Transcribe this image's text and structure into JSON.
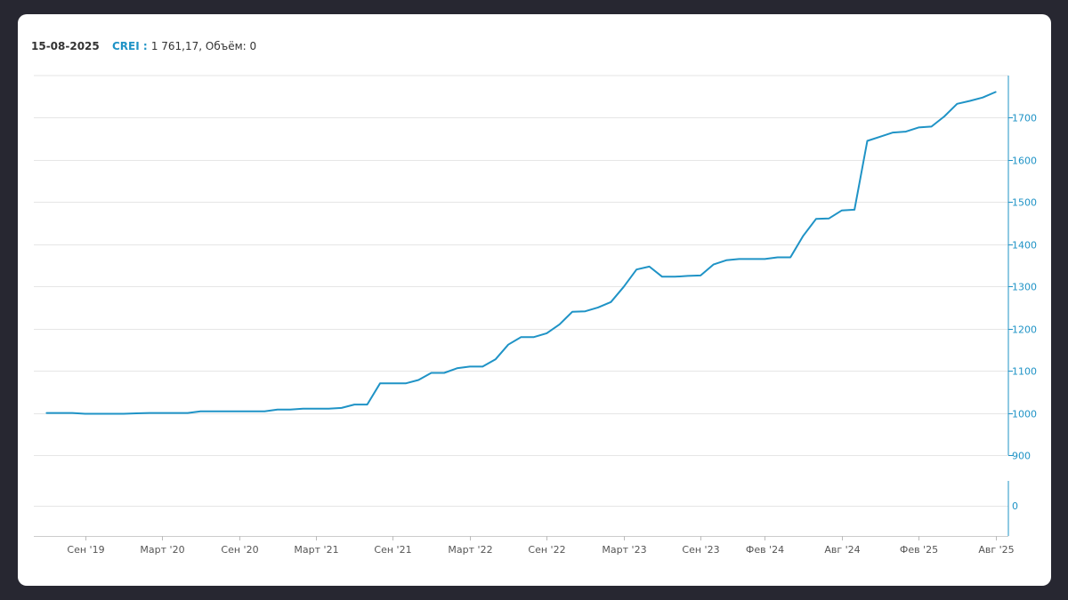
{
  "header": {
    "date": "15-08-2025",
    "ticker_label": "CREI :",
    "value_text": "1 761,17, Объём: 0"
  },
  "colors": {
    "series": "#1f93c6",
    "grid": "#e6e6e6",
    "axis_text": "#1f93c6",
    "xtick_text": "#555555"
  },
  "chart_data": {
    "type": "line",
    "title": "",
    "xlabel": "",
    "ylabel": "",
    "ylim": [
      900,
      1800
    ],
    "yticks": [
      900,
      1000,
      1100,
      1200,
      1300,
      1400,
      1500,
      1600,
      1700
    ],
    "xlim": [
      "2019-05",
      "2025-09"
    ],
    "x_ticks": [
      {
        "date": "2019-09",
        "label": "Сен '19"
      },
      {
        "date": "2020-03",
        "label": "Март '20"
      },
      {
        "date": "2020-09",
        "label": "Сен '20"
      },
      {
        "date": "2021-03",
        "label": "Март '21"
      },
      {
        "date": "2021-09",
        "label": "Сен '21"
      },
      {
        "date": "2022-03",
        "label": "Март '22"
      },
      {
        "date": "2022-09",
        "label": "Сен '22"
      },
      {
        "date": "2023-03",
        "label": "Март '23"
      },
      {
        "date": "2023-09",
        "label": "Сен '23"
      },
      {
        "date": "2024-02",
        "label": "Фев '24"
      },
      {
        "date": "2024-08",
        "label": "Авг '24"
      },
      {
        "date": "2025-02",
        "label": "Фев '25"
      },
      {
        "date": "2025-08",
        "label": "Авг '25"
      }
    ],
    "series": [
      {
        "x": [
          "2019-06",
          "2019-07",
          "2019-08",
          "2019-09",
          "2019-10",
          "2019-11",
          "2019-12",
          "2020-01",
          "2020-02",
          "2020-03",
          "2020-04",
          "2020-05",
          "2020-06",
          "2020-07",
          "2020-08",
          "2020-09",
          "2020-10",
          "2020-11",
          "2020-12",
          "2021-01",
          "2021-02",
          "2021-03",
          "2021-04",
          "2021-05",
          "2021-06",
          "2021-07",
          "2021-08",
          "2021-09",
          "2021-10",
          "2021-11",
          "2021-12",
          "2022-01",
          "2022-02",
          "2022-03",
          "2022-04",
          "2022-05",
          "2022-06",
          "2022-07",
          "2022-08",
          "2022-09",
          "2022-10",
          "2022-11",
          "2022-12",
          "2023-01",
          "2023-02",
          "2023-03",
          "2023-04",
          "2023-05",
          "2023-06",
          "2023-07",
          "2023-08",
          "2023-09",
          "2023-10",
          "2023-11",
          "2023-12",
          "2024-01",
          "2024-02",
          "2024-03",
          "2024-04",
          "2024-05",
          "2024-06",
          "2024-07",
          "2024-08",
          "2024-09",
          "2024-10",
          "2024-11",
          "2024-12",
          "2025-01",
          "2025-02",
          "2025-03",
          "2025-04",
          "2025-05",
          "2025-06",
          "2025-07",
          "2025-08"
        ],
        "values": [
          1000,
          1000,
          1000,
          998,
          998,
          998,
          998,
          999,
          1000,
          1000,
          1000,
          1000,
          1004,
          1004,
          1004,
          1004,
          1004,
          1004,
          1008,
          1008,
          1010,
          1010,
          1010,
          1012,
          1020,
          1020,
          1070,
          1070,
          1070,
          1078,
          1095,
          1095,
          1106,
          1110,
          1110,
          1127,
          1162,
          1180,
          1180,
          1189,
          1210,
          1240,
          1241,
          1250,
          1263,
          1299,
          1340,
          1347,
          1323,
          1323,
          1325,
          1326,
          1352,
          1362,
          1365,
          1365,
          1365,
          1369,
          1369,
          1420,
          1460,
          1461,
          1480,
          1482,
          1645,
          1655,
          1665,
          1667,
          1677,
          1679,
          1703,
          1733,
          1740,
          1748,
          1761
        ]
      }
    ],
    "volume": {
      "yticks": [
        0
      ],
      "values": [
        0
      ]
    }
  }
}
